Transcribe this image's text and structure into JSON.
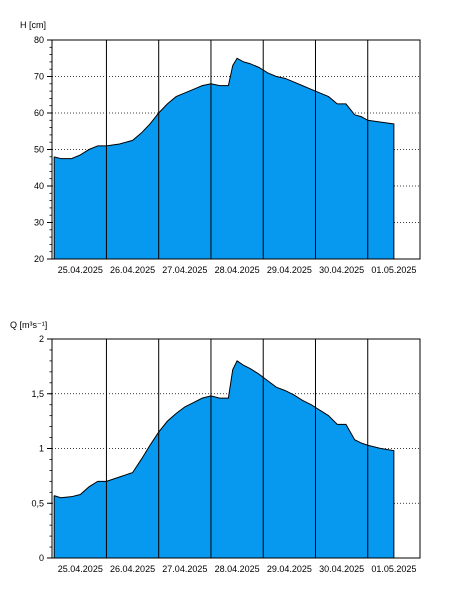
{
  "colors": {
    "fill": "#0799f0",
    "line": "#000000",
    "background": "#ffffff"
  },
  "chart_data": [
    {
      "type": "area",
      "ylabel": "H [cm]",
      "ylim": [
        20,
        80
      ],
      "y_ticks": [
        20,
        30,
        40,
        50,
        60,
        70,
        80
      ],
      "y_tick_labels": [
        "20",
        "30",
        "40",
        "50",
        "60",
        "70",
        "80"
      ],
      "x_range": [
        "2025-04-24T23:00",
        "2025-05-02T00:00"
      ],
      "x_tick_labels": [
        "25.04.2025",
        "26.04.2025",
        "27.04.2025",
        "28.04.2025",
        "29.04.2025",
        "30.04.2025",
        "01.05.2025"
      ],
      "grid": true,
      "series": [
        {
          "x": [
            "2025-04-25T00:00",
            "2025-04-25T03:00",
            "2025-04-25T08:00",
            "2025-04-25T12:00",
            "2025-04-25T16:00",
            "2025-04-25T20:00",
            "2025-04-26T00:00",
            "2025-04-26T06:00",
            "2025-04-26T12:00",
            "2025-04-26T16:00",
            "2025-04-26T20:00",
            "2025-04-27T00:00",
            "2025-04-27T04:00",
            "2025-04-27T08:00",
            "2025-04-27T12:00",
            "2025-04-27T16:00",
            "2025-04-27T20:00",
            "2025-04-28T00:00",
            "2025-04-28T04:00",
            "2025-04-28T08:00",
            "2025-04-28T10:00",
            "2025-04-28T12:00",
            "2025-04-28T15:00",
            "2025-04-28T18:00",
            "2025-04-28T22:00",
            "2025-04-29T02:00",
            "2025-04-29T06:00",
            "2025-04-29T10:00",
            "2025-04-29T14:00",
            "2025-04-29T18:00",
            "2025-04-29T22:00",
            "2025-04-30T02:00",
            "2025-04-30T06:00",
            "2025-04-30T10:00",
            "2025-04-30T14:00",
            "2025-04-30T18:00",
            "2025-04-30T21:00",
            "2025-05-01T00:00",
            "2025-05-01T06:00",
            "2025-05-01T12:00"
          ],
          "values": [
            48,
            47.5,
            47.5,
            48.5,
            50,
            51,
            51,
            51.5,
            52.5,
            54.5,
            57,
            60,
            62.5,
            64.5,
            65.5,
            66.5,
            67.5,
            68,
            67.5,
            67.5,
            73,
            75,
            74,
            73.5,
            72.5,
            71,
            70,
            69.5,
            68.5,
            67.5,
            66.5,
            65.5,
            64.5,
            62.5,
            62.5,
            59.5,
            59,
            58,
            57.5,
            57
          ]
        }
      ]
    },
    {
      "type": "area",
      "ylabel": "Q [m³s⁻¹]",
      "ylim": [
        0,
        2
      ],
      "y_ticks": [
        0,
        0.5,
        1,
        1.5,
        2
      ],
      "y_tick_labels": [
        "0",
        "0,5",
        "1",
        "1,5",
        "2"
      ],
      "x_range": [
        "2025-04-24T23:00",
        "2025-05-02T00:00"
      ],
      "x_tick_labels": [
        "25.04.2025",
        "26.04.2025",
        "27.04.2025",
        "28.04.2025",
        "29.04.2025",
        "30.04.2025",
        "01.05.2025"
      ],
      "grid": true,
      "series": [
        {
          "x": [
            "2025-04-25T00:00",
            "2025-04-25T03:00",
            "2025-04-25T08:00",
            "2025-04-25T12:00",
            "2025-04-25T16:00",
            "2025-04-25T20:00",
            "2025-04-26T00:00",
            "2025-04-26T06:00",
            "2025-04-26T12:00",
            "2025-04-26T16:00",
            "2025-04-26T20:00",
            "2025-04-27T00:00",
            "2025-04-27T04:00",
            "2025-04-27T08:00",
            "2025-04-27T12:00",
            "2025-04-27T16:00",
            "2025-04-27T20:00",
            "2025-04-28T00:00",
            "2025-04-28T04:00",
            "2025-04-28T08:00",
            "2025-04-28T10:00",
            "2025-04-28T12:00",
            "2025-04-28T15:00",
            "2025-04-28T18:00",
            "2025-04-28T22:00",
            "2025-04-29T02:00",
            "2025-04-29T06:00",
            "2025-04-29T10:00",
            "2025-04-29T14:00",
            "2025-04-29T18:00",
            "2025-04-29T22:00",
            "2025-04-30T02:00",
            "2025-04-30T06:00",
            "2025-04-30T10:00",
            "2025-04-30T14:00",
            "2025-04-30T18:00",
            "2025-04-30T21:00",
            "2025-05-01T00:00",
            "2025-05-01T06:00",
            "2025-05-01T12:00"
          ],
          "values": [
            0.57,
            0.55,
            0.56,
            0.58,
            0.65,
            0.7,
            0.7,
            0.74,
            0.78,
            0.9,
            1.03,
            1.15,
            1.25,
            1.32,
            1.38,
            1.42,
            1.46,
            1.48,
            1.46,
            1.46,
            1.72,
            1.8,
            1.76,
            1.73,
            1.68,
            1.62,
            1.56,
            1.53,
            1.49,
            1.44,
            1.4,
            1.35,
            1.3,
            1.22,
            1.22,
            1.08,
            1.05,
            1.03,
            1.0,
            0.98
          ]
        }
      ]
    }
  ]
}
